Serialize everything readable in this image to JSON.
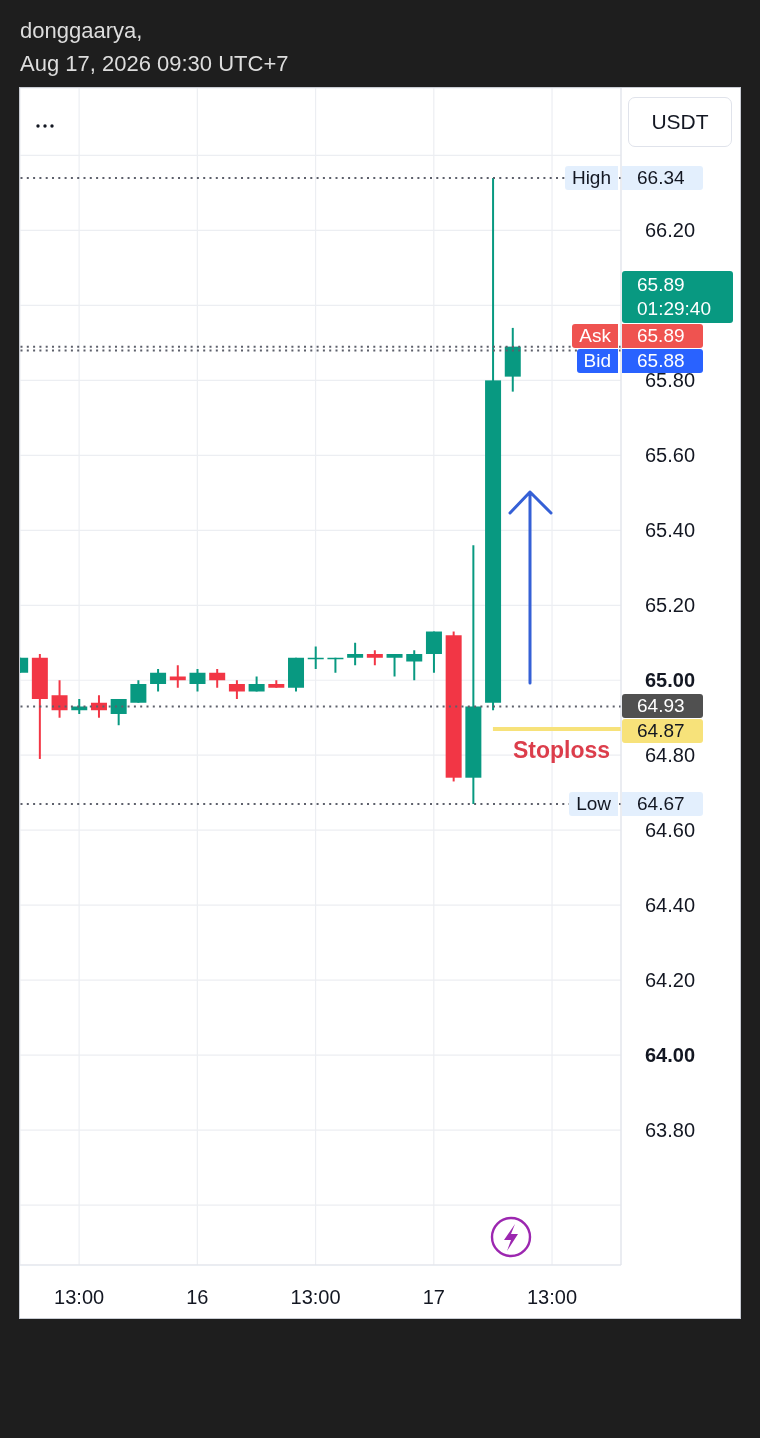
{
  "chart_data": {
    "type": "candlestick",
    "title": "donggaarya,",
    "subtitle": "Aug 17, 2026 09:30 UTC+7",
    "ylabel": "USDT",
    "x": [
      "2026-08-15T07:00",
      "2026-08-15T09:00",
      "2026-08-15T11:00",
      "2026-08-15T13:00",
      "2026-08-15T15:00",
      "2026-08-15T17:00",
      "2026-08-15T19:00",
      "2026-08-15T21:00",
      "2026-08-15T23:00",
      "2026-08-16T01:00",
      "2026-08-16T03:00",
      "2026-08-16T05:00",
      "2026-08-16T07:00",
      "2026-08-16T09:00",
      "2026-08-16T11:00",
      "2026-08-16T13:00",
      "2026-08-16T15:00",
      "2026-08-16T17:00",
      "2026-08-16T19:00",
      "2026-08-16T21:00",
      "2026-08-16T23:00",
      "2026-08-17T01:00",
      "2026-08-17T03:00",
      "2026-08-17T05:00",
      "2026-08-17T07:00",
      "2026-08-17T09:00"
    ],
    "ohlc": [
      [
        65.02,
        65.06,
        65.02,
        65.06
      ],
      [
        65.06,
        65.07,
        64.79,
        64.95
      ],
      [
        64.96,
        65.0,
        64.9,
        64.92
      ],
      [
        64.92,
        64.95,
        64.91,
        64.93
      ],
      [
        64.94,
        64.96,
        64.9,
        64.92
      ],
      [
        64.91,
        64.95,
        64.88,
        64.95
      ],
      [
        64.94,
        65.0,
        64.94,
        64.99
      ],
      [
        64.99,
        65.03,
        64.97,
        65.02
      ],
      [
        65.01,
        65.04,
        64.98,
        65.0
      ],
      [
        64.99,
        65.03,
        64.97,
        65.02
      ],
      [
        65.02,
        65.03,
        64.98,
        65.0
      ],
      [
        64.99,
        65.0,
        64.95,
        64.97
      ],
      [
        64.97,
        65.01,
        64.97,
        64.99
      ],
      [
        64.99,
        65.0,
        64.98,
        64.98
      ],
      [
        64.98,
        65.06,
        64.97,
        65.06
      ],
      [
        65.06,
        65.09,
        65.03,
        65.06
      ],
      [
        65.06,
        65.06,
        65.02,
        65.06
      ],
      [
        65.06,
        65.1,
        65.04,
        65.07
      ],
      [
        65.07,
        65.08,
        65.04,
        65.06
      ],
      [
        65.06,
        65.07,
        65.01,
        65.07
      ],
      [
        65.05,
        65.08,
        65.0,
        65.07
      ],
      [
        65.07,
        65.13,
        65.02,
        65.13
      ],
      [
        65.12,
        65.13,
        64.73,
        64.74
      ],
      [
        64.74,
        65.36,
        64.67,
        64.93
      ],
      [
        64.94,
        66.34,
        64.92,
        65.8
      ],
      [
        65.81,
        65.94,
        65.77,
        65.89
      ]
    ],
    "colors": [
      "#089981",
      "#f23645",
      "#f23645",
      "#089981",
      "#f23645",
      "#089981",
      "#089981",
      "#089981",
      "#f23645",
      "#089981",
      "#f23645",
      "#f23645",
      "#089981",
      "#f23645",
      "#089981",
      "#089981",
      "#089981",
      "#089981",
      "#f23645",
      "#089981",
      "#089981",
      "#089981",
      "#f23645",
      "#089981",
      "#089981",
      "#089981"
    ],
    "series": [
      {
        "type": "line",
        "name": "Stoploss",
        "color": "#f7e27a",
        "x": [
          "2026-08-17T07:00",
          "2026-08-17T20:00"
        ],
        "values": [
          64.87,
          64.87
        ],
        "value_labels": [
          null,
          "64.87"
        ]
      }
    ],
    "xlim": [
      "2026-08-15T07:00",
      "2026-08-17T20:00"
    ],
    "xticks": [
      {
        "value": "2026-08-15T13:00",
        "label": "13:00"
      },
      {
        "value": "2026-08-16T01:00",
        "label": "16"
      },
      {
        "value": "2026-08-16T13:00",
        "label": "13:00"
      },
      {
        "value": "2026-08-17T01:00",
        "label": "17"
      },
      {
        "value": "2026-08-17T13:00",
        "label": "13:00"
      }
    ],
    "ylim": [
      63.44,
      66.58
    ],
    "yticks": [
      {
        "value": 63.6,
        "label": null
      },
      {
        "value": 63.8,
        "label": "63.80"
      },
      {
        "value": 64,
        "label": "64.00"
      },
      {
        "value": 64.2,
        "label": "64.20"
      },
      {
        "value": 64.4,
        "label": "64.40"
      },
      {
        "value": 64.6,
        "label": "64.60"
      },
      {
        "value": 64.8,
        "label": "64.80"
      },
      {
        "value": 65,
        "label": "65.00"
      },
      {
        "value": 65.2,
        "label": "65.20"
      },
      {
        "value": 65.4,
        "label": "65.40"
      },
      {
        "value": 65.6,
        "label": "65.60"
      },
      {
        "value": 65.8,
        "label": "65.80"
      },
      {
        "value": 66,
        "label": null
      },
      {
        "value": 66.2,
        "label": "66.20"
      },
      {
        "value": 66.4,
        "label": null
      }
    ],
    "grid": true,
    "ref_lines": [
      {
        "axis": "y",
        "value": 66.34,
        "label": "High 66.34",
        "line_style": "dotted"
      },
      {
        "axis": "y",
        "value": 65.89,
        "label": "Ask 65.89",
        "line_style": "dotted"
      },
      {
        "axis": "y",
        "value": 65.88,
        "label": "Bid 65.88",
        "line_style": "dotted"
      },
      {
        "axis": "y",
        "value": 64.93,
        "label": "64.93",
        "line_style": "dotted"
      },
      {
        "axis": "y",
        "value": 64.67,
        "label": "Low 64.67",
        "line_style": "dotted"
      }
    ],
    "annotations": [
      "65.89 01:29:40"
    ]
  }
}
